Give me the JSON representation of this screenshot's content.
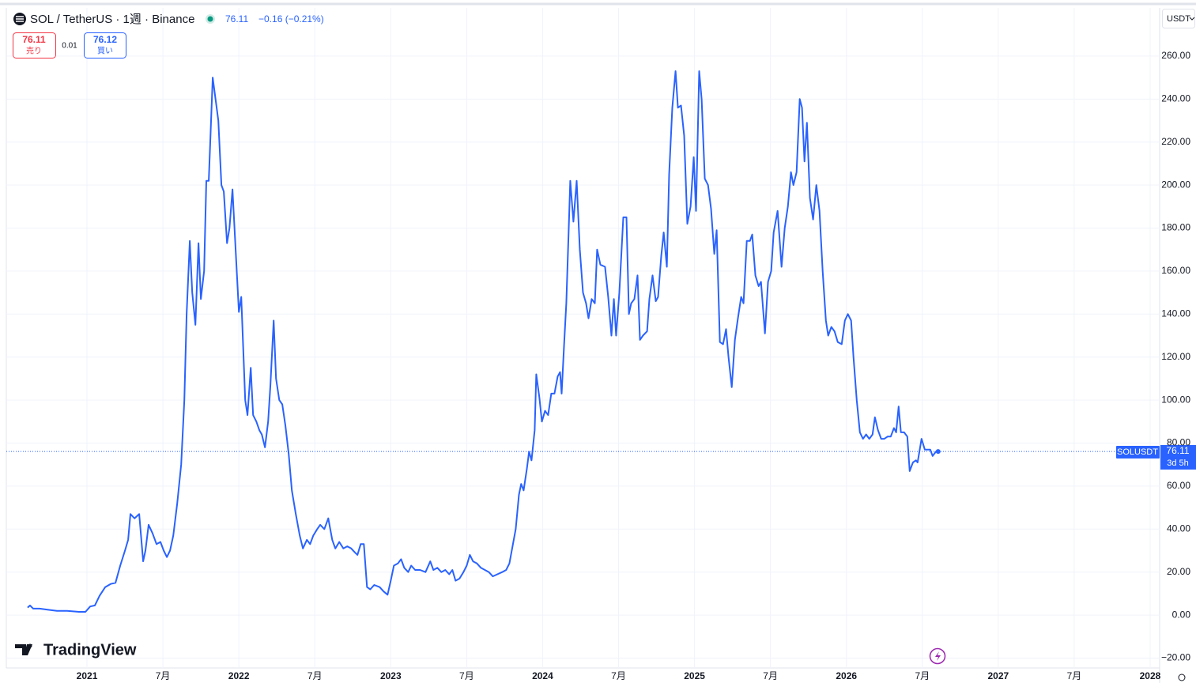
{
  "header": {
    "symbol": "SOL / TetherUS · 1週 · Binance",
    "change": "−0.16 (−0.21%)",
    "sell_label": "売り",
    "buy_label": "買い",
    "buy_price": 76.12,
    "spread": 0.01,
    "currency": "USDT",
    "watermark": "TradingView"
  },
  "chart_data": {
    "type": "line",
    "countdown": "3d 5h",
    "x": [
      2020.609,
      2020.625,
      2020.646,
      2020.688,
      2020.74,
      2020.802,
      2020.87,
      2020.948,
      2020.99,
      2021.021,
      2021.052,
      2021.083,
      2021.12,
      2021.156,
      2021.188,
      2021.219,
      2021.25,
      2021.271,
      2021.286,
      2021.313,
      2021.344,
      2021.37,
      2021.385,
      2021.406,
      2021.432,
      2021.458,
      2021.484,
      2021.505,
      2021.526,
      2021.547,
      2021.568,
      2021.594,
      2021.62,
      2021.641,
      2021.656,
      2021.677,
      2021.693,
      2021.714,
      2021.734,
      2021.75,
      2021.771,
      2021.786,
      2021.802,
      2021.828,
      2021.865,
      2021.885,
      2021.901,
      2021.922,
      2021.938,
      2021.958,
      2022.0,
      2022.016,
      2022.042,
      2022.057,
      2022.078,
      2022.094,
      2022.115,
      2022.135,
      2022.151,
      2022.172,
      2022.193,
      2022.208,
      2022.229,
      2022.245,
      2022.266,
      2022.286,
      2022.307,
      2022.328,
      2022.349,
      2022.375,
      2022.401,
      2022.422,
      2022.448,
      2022.469,
      2022.49,
      2022.516,
      2022.536,
      2022.563,
      2022.589,
      2022.615,
      2022.635,
      2022.661,
      2022.688,
      2022.714,
      2022.74,
      2022.766,
      2022.781,
      2022.802,
      2022.823,
      2022.844,
      2022.865,
      2022.891,
      2022.927,
      2022.953,
      2022.979,
      2023.0,
      2023.021,
      2023.047,
      2023.068,
      2023.089,
      2023.115,
      2023.135,
      2023.161,
      2023.193,
      2023.229,
      2023.26,
      2023.281,
      2023.307,
      2023.333,
      2023.359,
      2023.385,
      2023.406,
      2023.427,
      2023.453,
      2023.479,
      2023.5,
      2023.521,
      2023.542,
      2023.568,
      2023.594,
      2023.62,
      2023.646,
      2023.672,
      2023.703,
      2023.734,
      2023.76,
      2023.781,
      2023.802,
      2023.823,
      2023.844,
      2023.859,
      2023.875,
      2023.896,
      2023.911,
      2023.927,
      2023.948,
      2023.958,
      2023.979,
      2023.995,
      2024.016,
      2024.036,
      2024.057,
      2024.078,
      2024.099,
      2024.115,
      2024.125,
      2024.141,
      2024.156,
      2024.172,
      2024.182,
      2024.203,
      2024.224,
      2024.245,
      2024.266,
      2024.286,
      2024.302,
      2024.323,
      2024.344,
      2024.359,
      2024.38,
      2024.411,
      2024.432,
      2024.453,
      2024.469,
      2024.484,
      2024.505,
      2024.531,
      2024.552,
      2024.568,
      2024.583,
      2024.604,
      2024.625,
      2024.641,
      2024.661,
      2024.688,
      2024.703,
      2024.724,
      2024.745,
      2024.76,
      2024.781,
      2024.797,
      2024.818,
      2024.833,
      2024.854,
      2024.875,
      2024.891,
      2024.911,
      2024.932,
      2024.953,
      2024.974,
      2024.995,
      2025.01,
      2025.031,
      2025.047,
      2025.068,
      2025.089,
      2025.109,
      2025.13,
      2025.146,
      2025.167,
      2025.188,
      2025.208,
      2025.224,
      2025.245,
      2025.266,
      2025.286,
      2025.307,
      2025.323,
      2025.344,
      2025.365,
      2025.38,
      2025.401,
      2025.422,
      2025.438,
      2025.464,
      2025.484,
      2025.505,
      2025.521,
      2025.547,
      2025.573,
      2025.594,
      2025.615,
      2025.635,
      2025.651,
      2025.672,
      2025.693,
      2025.708,
      2025.724,
      2025.74,
      2025.76,
      2025.781,
      2025.802,
      2025.823,
      2025.844,
      2025.865,
      2025.88,
      2025.901,
      2025.922,
      2025.943,
      2025.969,
      2025.99,
      2026.01,
      2026.031,
      2026.047,
      2026.068,
      2026.089,
      2026.109,
      2026.13,
      2026.151,
      2026.172,
      2026.188,
      2026.208,
      2026.229,
      2026.25,
      2026.271,
      2026.292,
      2026.313,
      2026.328,
      2026.344,
      2026.359,
      2026.38,
      2026.401,
      2026.417,
      2026.438,
      2026.458,
      2026.469,
      2026.495,
      2026.516,
      2026.531,
      2026.552,
      2026.568,
      2026.589,
      2026.604
    ],
    "series": [
      {
        "name": "SOLUSDT",
        "color": "#2962ff",
        "values": [
          3.5,
          4.5,
          3,
          3,
          2.5,
          2,
          2,
          1.5,
          1.5,
          4,
          4.5,
          9,
          13,
          14.5,
          15,
          23,
          30,
          35,
          47,
          45,
          47,
          25,
          30,
          42,
          38,
          33,
          34,
          30,
          27,
          30,
          37,
          52,
          70,
          100,
          140,
          174,
          150,
          135,
          173,
          147,
          160,
          202,
          202,
          250,
          230,
          200,
          197,
          173,
          180,
          198,
          141,
          148,
          100,
          93,
          115,
          93,
          90,
          86,
          84,
          78,
          90,
          107,
          137,
          110,
          100,
          98,
          88,
          75,
          58,
          47,
          37,
          31,
          35,
          33,
          37,
          40,
          42,
          40,
          45,
          35,
          31,
          34,
          31,
          32,
          31,
          29,
          28,
          33,
          33,
          13,
          12,
          14,
          13,
          11,
          9.5,
          16,
          23,
          24,
          26,
          22,
          20,
          23,
          21,
          21,
          20,
          25,
          21,
          22,
          20,
          21,
          19,
          21,
          16,
          17,
          20,
          23,
          28,
          25,
          24,
          22,
          21,
          20,
          18,
          19,
          20,
          21,
          24,
          32,
          40,
          56,
          61,
          58,
          68,
          76,
          72,
          86,
          112,
          101,
          90,
          95,
          93,
          103,
          103,
          111,
          113,
          103,
          125,
          145,
          180,
          202,
          183,
          202,
          170,
          150,
          145,
          138,
          147,
          145,
          170,
          163,
          162,
          148,
          130,
          147,
          130,
          150,
          185,
          185,
          140,
          145,
          147,
          158,
          128,
          130,
          132,
          147,
          158,
          146,
          148,
          167,
          178,
          162,
          205,
          236,
          253,
          236,
          237,
          223,
          182,
          190,
          213,
          188,
          253,
          240,
          203,
          200,
          189,
          168,
          179,
          127,
          126,
          133,
          120,
          106,
          128,
          138,
          148,
          145,
          174,
          174,
          177,
          158,
          153,
          155,
          131,
          155,
          160,
          178,
          188,
          162,
          180,
          190,
          206,
          200,
          206,
          240,
          236,
          211,
          229,
          194,
          184,
          200,
          188,
          160,
          137,
          130,
          134,
          132,
          127,
          126,
          137,
          140,
          137,
          120,
          100,
          85,
          82,
          84,
          82,
          84,
          92,
          86,
          82,
          82,
          83,
          83,
          87,
          85,
          97,
          85,
          85,
          83,
          67,
          71,
          72,
          71,
          82,
          77,
          77,
          77,
          74,
          76,
          76.11
        ]
      }
    ],
    "xlim": [
      2020.469,
      2028.0625
    ],
    "xticks": [
      2021,
      {
        "value": 2021.5,
        "label": "7月"
      },
      2022,
      {
        "value": 2022.5,
        "label": "7月"
      },
      2023,
      {
        "value": 2023.5,
        "label": "7月"
      },
      2024,
      {
        "value": 2024.5,
        "label": "7月"
      },
      2025,
      {
        "value": 2025.5,
        "label": "7月"
      },
      2026,
      {
        "value": 2026.5,
        "label": "7月"
      },
      2027,
      {
        "value": 2027.5,
        "label": "7月"
      },
      2028
    ],
    "ylim": [
      -24.6,
      282.4
    ],
    "yticks": [
      {
        "value": -20,
        "label": "−20.00"
      },
      {
        "value": 0,
        "label": "0.00"
      },
      {
        "value": 20,
        "label": "20.00"
      },
      {
        "value": 40,
        "label": "40.00"
      },
      {
        "value": 60,
        "label": "60.00"
      },
      {
        "value": 80,
        "label": "80.00"
      },
      {
        "value": 100,
        "label": "100.00"
      },
      {
        "value": 120,
        "label": "120.00"
      },
      {
        "value": 140,
        "label": "140.00"
      },
      {
        "value": 160,
        "label": "160.00"
      },
      {
        "value": 180,
        "label": "180.00"
      },
      {
        "value": 200,
        "label": "200.00"
      },
      {
        "value": 220,
        "label": "220.00"
      },
      {
        "value": 240,
        "label": "240.00"
      },
      {
        "value": 260,
        "label": "260.00"
      }
    ],
    "grid": true
  }
}
